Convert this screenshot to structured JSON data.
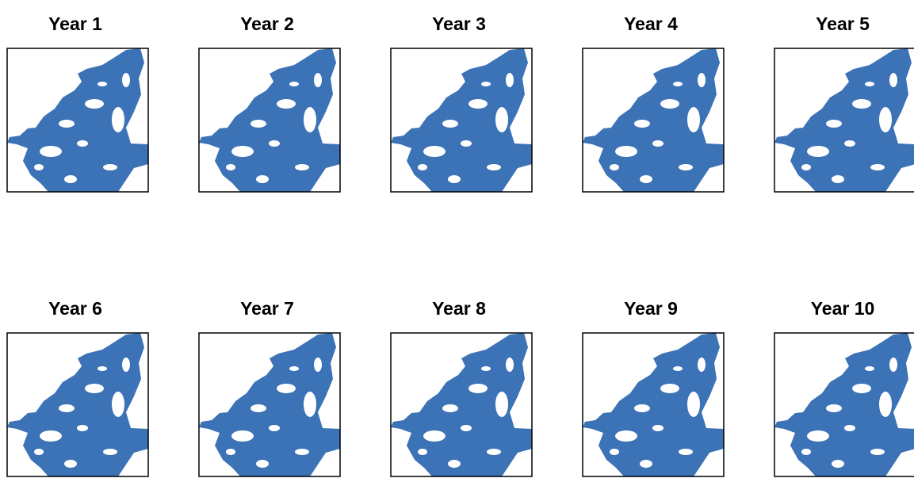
{
  "panels": [
    {
      "title": "Year 1"
    },
    {
      "title": "Year 2"
    },
    {
      "title": "Year 3"
    },
    {
      "title": "Year 4"
    },
    {
      "title": "Year 5"
    },
    {
      "title": "Year 6"
    },
    {
      "title": "Year 7"
    },
    {
      "title": "Year 8"
    },
    {
      "title": "Year 9"
    },
    {
      "title": "Year 10"
    }
  ]
}
